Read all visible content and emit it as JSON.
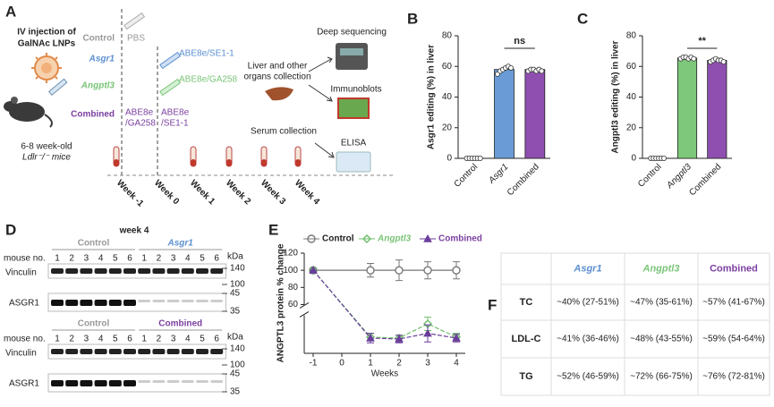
{
  "panel_labels": [
    "A",
    "B",
    "C",
    "D",
    "E",
    "F"
  ],
  "panel_a": {
    "title": [
      "IV injection of",
      "GalNAc LNPs"
    ],
    "mice": [
      "6-8 week-old",
      "Ldlr⁻/⁻ mice"
    ],
    "groups": [
      "Control",
      "Asgr1",
      "Angptl3",
      "Combined"
    ],
    "treatments": {
      "control": "PBS",
      "asgr1": "ABE8e/SE1-1",
      "angptl3": "ABE8e/GA258",
      "combined_a": [
        "ABE8e",
        "/GA258"
      ],
      "combined_b": [
        "ABE8e",
        "/SE1-1"
      ]
    },
    "weeks": [
      "Week -1",
      "Week 0",
      "Week 1",
      "Week 2",
      "Week 3",
      "Week 4"
    ],
    "readouts": {
      "sequencing": "Deep sequencing",
      "collection": [
        "Liver and other",
        "organs collection"
      ],
      "blots": "Immunoblots",
      "serum": "Serum collection",
      "elisa": "ELISA"
    }
  },
  "chart_data": [
    {
      "type": "bar",
      "ylabel": "Asgr1 editing (%) in liver",
      "categories": [
        "Control",
        "Asgr1",
        "Combined"
      ],
      "values": [
        0,
        58,
        58
      ],
      "colors": [
        "#ffffff",
        "#6a9bd6",
        "#8e4fb0"
      ],
      "points": [
        [
          0,
          0,
          0,
          0,
          0,
          0
        ],
        [
          55,
          57,
          58,
          59,
          60,
          59
        ],
        [
          57,
          58,
          58,
          57,
          58,
          57
        ]
      ],
      "ylim": [
        0,
        80
      ],
      "yticks": [
        0,
        20,
        40,
        60,
        80
      ],
      "annotation": "ns"
    },
    {
      "type": "bar",
      "ylabel": "Angptl3 editing (%) in liver",
      "categories": [
        "Control",
        "Angptl3",
        "Combined"
      ],
      "values": [
        0,
        65.5,
        64
      ],
      "colors": [
        "#ffffff",
        "#7dc87a",
        "#8e4fb0"
      ],
      "points": [
        [
          0,
          0,
          0,
          0,
          0,
          0
        ],
        [
          65,
          66,
          66,
          65,
          66,
          65
        ],
        [
          63,
          64,
          65,
          64,
          64,
          63
        ]
      ],
      "ylim": [
        0,
        80
      ],
      "yticks": [
        0,
        20,
        40,
        60,
        80
      ],
      "annotation": "**"
    },
    {
      "type": "line",
      "ylabel": "ANGPTL3 protein % change",
      "xlabel": "Weeks",
      "x": [
        -1,
        1,
        2,
        3,
        4
      ],
      "series": [
        {
          "name": "Control",
          "color": "#777777",
          "marker": "circle",
          "values": [
            100,
            100,
            100,
            100,
            100
          ],
          "errors": [
            0,
            8,
            12,
            10,
            10
          ]
        },
        {
          "name": "Angptl3",
          "color": "#6cbf6a",
          "marker": "diamond",
          "values": [
            100,
            17,
            16,
            31,
            17
          ],
          "errors": [
            0,
            4,
            3,
            7,
            4
          ]
        },
        {
          "name": "Combined",
          "color": "#6a3d9a",
          "marker": "triangle",
          "values": [
            100,
            16,
            15,
            21,
            16
          ],
          "errors": [
            0,
            5,
            4,
            9,
            4
          ]
        }
      ],
      "xlim": [
        -1,
        4
      ],
      "xticks": [
        -1,
        0,
        1,
        2,
        3,
        4
      ],
      "ylim": [
        0,
        120
      ],
      "yticks": [
        60,
        80,
        100,
        120
      ],
      "ybreak": [
        40,
        60
      ],
      "legend": "top"
    }
  ],
  "panel_d": {
    "title": "week 4",
    "row_label": "mouse no.",
    "unit": "kDa",
    "blocks": [
      {
        "groups": [
          {
            "name": "Control",
            "lanes": [
              "1",
              "2",
              "3",
              "4",
              "5",
              "6"
            ]
          },
          {
            "name": "Asgr1",
            "lanes": [
              "1",
              "2",
              "3",
              "4",
              "5",
              "6"
            ]
          }
        ],
        "proteins": [
          "Vinculin",
          "ASGR1"
        ],
        "markers": [
          "140",
          "100",
          "45",
          "35"
        ]
      },
      {
        "groups": [
          {
            "name": "Control",
            "lanes": [
              "1",
              "2",
              "3",
              "4",
              "5",
              "6"
            ]
          },
          {
            "name": "Combined",
            "lanes": [
              "1",
              "2",
              "3",
              "4",
              "5",
              "6"
            ]
          }
        ],
        "proteins": [
          "Vinculin",
          "ASGR1"
        ],
        "markers": [
          "140",
          "100",
          "45",
          "35"
        ]
      }
    ]
  },
  "table": {
    "header": [
      "Asgr1",
      "Angptl3",
      "Combined"
    ],
    "rows": [
      {
        "label": "TC",
        "cells": [
          "~40% (27-51%)",
          "~47% (35-61%)",
          "~57% (41-67%)"
        ]
      },
      {
        "label": "LDL-C",
        "cells": [
          "~41% (36-46%)",
          "~48% (43-55%)",
          "~59% (54-64%)"
        ]
      },
      {
        "label": "TG",
        "cells": [
          "~52% (46-59%)",
          "~72% (66-75%)",
          "~76% (72-81%)"
        ]
      }
    ]
  }
}
